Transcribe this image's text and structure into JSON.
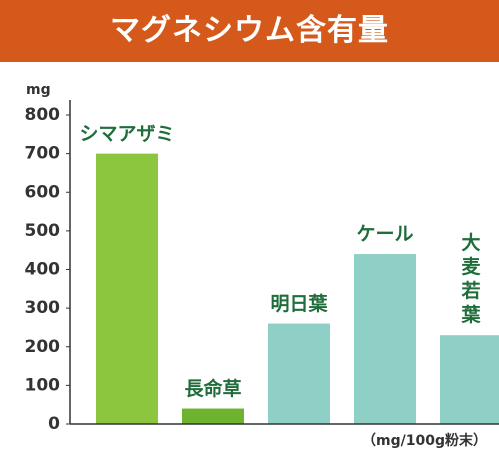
{
  "chart_data": {
    "type": "bar",
    "title": "マグネシウム含有量",
    "y_label": "mg",
    "note": "（mg/100g粉末）",
    "categories": [
      "シマアザミ",
      "長命草",
      "明日葉",
      "ケール",
      "大麦\n若葉"
    ],
    "values": [
      700,
      40,
      260,
      440,
      230
    ],
    "colors": [
      "#8cc63e",
      "#6db330",
      "#8fd0c6",
      "#8fd0c6",
      "#8fd0c6"
    ],
    "label_color": "#1f6d3b",
    "ylim": [
      0,
      800
    ],
    "yticks": [
      0,
      100,
      200,
      300,
      400,
      500,
      600,
      700,
      800
    ]
  }
}
